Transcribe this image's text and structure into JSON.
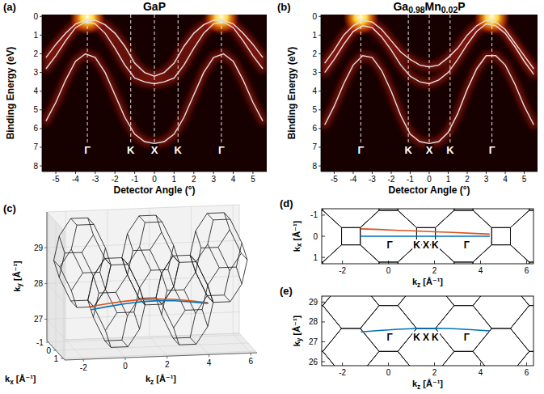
{
  "chart_data": [
    {
      "type": "line",
      "panel": "(a)",
      "title": "GaP",
      "x_label": "Detector Angle (°)",
      "y_label": "Binding Energy (eV)",
      "x": [
        -5.5,
        -5,
        -4.5,
        -4,
        -3.5,
        -3,
        -2.5,
        -2,
        -1.5,
        -1,
        -0.5,
        0,
        0.5,
        1,
        1.5,
        2,
        2.5,
        3,
        3.5,
        4,
        4.5,
        5,
        5.5
      ],
      "series": [
        {
          "color": "#e0e0e0",
          "values": [
            2.2,
            1.5,
            0.9,
            0.4,
            0.2,
            0.2,
            0.45,
            0.9,
            1.6,
            2.5,
            3.0,
            3.2,
            3.0,
            2.5,
            1.6,
            0.9,
            0.45,
            0.2,
            0.2,
            0.4,
            0.9,
            1.5,
            2.2
          ]
        },
        {
          "color": "#e0e0e0",
          "values": [
            2.8,
            2.1,
            1.3,
            0.6,
            0.3,
            0.4,
            0.9,
            1.7,
            2.6,
            3.3,
            3.5,
            3.6,
            3.5,
            3.3,
            2.6,
            1.7,
            0.9,
            0.4,
            0.3,
            0.6,
            1.3,
            2.1,
            2.8
          ]
        },
        {
          "color": "#e0e0e0",
          "values": [
            5.6,
            4.6,
            3.4,
            2.4,
            2.0,
            2.2,
            3.0,
            4.2,
            5.4,
            6.3,
            6.7,
            6.8,
            6.7,
            6.3,
            5.4,
            4.2,
            3.0,
            2.2,
            2.0,
            2.4,
            3.4,
            4.6,
            5.6
          ]
        }
      ],
      "xlim": [
        -5.7,
        5.7
      ],
      "ylim": [
        8.3,
        -0.1
      ],
      "xticks": [
        -5,
        -4,
        -3,
        -2,
        -1,
        0,
        1,
        2,
        3,
        4,
        5
      ],
      "yticks": [
        0,
        1,
        2,
        3,
        4,
        5,
        6,
        7,
        8
      ],
      "annotations": [
        {
          "text": "Γ",
          "x": -3.4,
          "y": 7.2
        },
        {
          "text": "K",
          "x": -1.2,
          "y": 7.2
        },
        {
          "text": "X",
          "x": 0,
          "y": 7.2
        },
        {
          "text": "K",
          "x": 1.2,
          "y": 7.2
        },
        {
          "text": "Γ",
          "x": 3.4,
          "y": 7.2
        }
      ]
    },
    {
      "type": "line",
      "panel": "(b)",
      "title": "Ga0.98Mn0.02P",
      "x_label": "Detector Angle (°)",
      "y_label": "Binding Energy (eV)",
      "x": [
        -5.5,
        -5,
        -4.5,
        -4,
        -3.5,
        -3,
        -2.5,
        -2,
        -1.5,
        -1,
        -0.5,
        0,
        0.5,
        1,
        1.5,
        2,
        2.5,
        3,
        3.5,
        4,
        4.5,
        5,
        5.5
      ],
      "series": [
        {
          "color": "#e0e0e0",
          "values": [
            2.5,
            1.8,
            1.0,
            0.5,
            0.2,
            0.3,
            0.7,
            1.3,
            1.9,
            2.3,
            2.6,
            2.7,
            2.6,
            2.2,
            1.7,
            1.0,
            0.5,
            0.2,
            0.3,
            0.7,
            1.4,
            2.1,
            2.8
          ]
        },
        {
          "color": "#e0e0e0",
          "values": [
            3.0,
            2.3,
            1.5,
            0.8,
            0.5,
            0.6,
            1.1,
            1.8,
            2.6,
            3.2,
            3.5,
            3.6,
            3.4,
            3.0,
            2.3,
            1.5,
            0.8,
            0.4,
            0.5,
            0.9,
            1.6,
            2.4,
            3.1
          ]
        },
        {
          "color": "#e0e0e0",
          "values": [
            5.8,
            4.8,
            3.6,
            2.6,
            2.1,
            2.2,
            2.9,
            4.0,
            5.3,
            6.3,
            6.7,
            6.8,
            6.7,
            6.2,
            5.2,
            3.9,
            2.8,
            2.1,
            2.1,
            2.6,
            3.6,
            4.8,
            5.8
          ]
        }
      ],
      "xlim": [
        -5.7,
        5.7
      ],
      "ylim": [
        8.3,
        -0.1
      ],
      "xticks": [
        -5,
        -4,
        -3,
        -2,
        -1,
        0,
        1,
        2,
        3,
        4,
        5
      ],
      "yticks": [
        0,
        1,
        2,
        3,
        4,
        5,
        6,
        7,
        8
      ],
      "annotations": [
        {
          "text": "Γ",
          "x": -3.6,
          "y": 7.2
        },
        {
          "text": "K",
          "x": -1.1,
          "y": 7.2
        },
        {
          "text": "X",
          "x": 0,
          "y": 7.2
        },
        {
          "text": "K",
          "x": 1.1,
          "y": 7.2
        },
        {
          "text": "Γ",
          "x": 3.3,
          "y": 7.2
        }
      ]
    },
    {
      "type": "line3d",
      "panel": "(c)",
      "x_label": "kz [Å⁻¹]",
      "y_label": "ky [Å⁻¹]",
      "z_label": "kx [Å⁻¹]",
      "x": [
        -1.2,
        -0.4,
        0.4,
        1.2,
        2.0,
        2.8,
        3.6,
        4.4
      ],
      "series": [
        {
          "color": "#0072bd",
          "values": [
            27.5,
            27.57,
            27.63,
            27.67,
            27.68,
            27.66,
            27.61,
            27.55
          ],
          "z": [
            0,
            0,
            0,
            0,
            0,
            0,
            0,
            0
          ]
        },
        {
          "color": "#d95319",
          "values": [
            27.5,
            27.57,
            27.63,
            27.67,
            27.68,
            27.66,
            27.61,
            27.55
          ],
          "z": [
            -0.35,
            -0.32,
            -0.28,
            -0.25,
            -0.21,
            -0.18,
            -0.14,
            -0.1
          ]
        }
      ],
      "xlim": [
        -2.9,
        6.3
      ],
      "ylim": [
        26.4,
        30
      ],
      "zlim": [
        -1.2,
        1.2
      ],
      "xticks": [
        -2,
        0,
        2,
        4,
        6
      ],
      "yticks": [
        27,
        28,
        29
      ],
      "zticks": [
        -1,
        0,
        1
      ],
      "grid": true,
      "zone_lattice": 1.153
    },
    {
      "type": "line",
      "panel": "(d)",
      "x_label": "kz [Å⁻¹]",
      "y_label": "kx [Å⁻¹]",
      "x": [
        -1.2,
        -0.4,
        0.4,
        1.2,
        2.0,
        2.8,
        3.6,
        4.4
      ],
      "series": [
        {
          "color": "#0072bd",
          "values": [
            0,
            0,
            0,
            0,
            0,
            0,
            0,
            0
          ]
        },
        {
          "color": "#d95319",
          "values": [
            -0.35,
            -0.32,
            -0.28,
            -0.25,
            -0.21,
            -0.18,
            -0.14,
            -0.1
          ]
        }
      ],
      "xlim": [
        -2.9,
        6.3
      ],
      "ylim": [
        1.3,
        -1.3
      ],
      "xticks": [
        -2,
        0,
        2,
        4,
        6
      ],
      "yticks": [
        -1,
        0,
        1
      ],
      "annotations": [
        {
          "text": "Γ",
          "x": 0.05,
          "y": 0.45
        },
        {
          "text": "K",
          "x": 1.23,
          "y": 0.45
        },
        {
          "text": "X",
          "x": 1.63,
          "y": 0.45
        },
        {
          "text": "K",
          "x": 2.03,
          "y": 0.45
        },
        {
          "text": "Γ",
          "x": 3.4,
          "y": 0.45
        }
      ],
      "zone_lattice": 1.153
    },
    {
      "type": "line",
      "panel": "(e)",
      "x_label": "kz [Å⁻¹]",
      "y_label": "ky [Å⁻¹]",
      "x": [
        -1.2,
        -0.4,
        0.4,
        1.2,
        2.0,
        2.8,
        3.6,
        4.4
      ],
      "series": [
        {
          "color": "#0072bd",
          "values": [
            27.5,
            27.57,
            27.63,
            27.67,
            27.68,
            27.66,
            27.61,
            27.55
          ]
        }
      ],
      "xlim": [
        -2.9,
        6.3
      ],
      "ylim": [
        25.8,
        29.3
      ],
      "xticks": [
        -2,
        0,
        2,
        4,
        6
      ],
      "yticks": [
        26,
        27,
        28,
        29
      ],
      "annotations": [
        {
          "text": "Γ",
          "x": 0.05,
          "y": 27.2
        },
        {
          "text": "K",
          "x": 1.23,
          "y": 27.2
        },
        {
          "text": "X",
          "x": 1.63,
          "y": 27.2
        },
        {
          "text": "K",
          "x": 2.03,
          "y": 27.2
        },
        {
          "text": "Γ",
          "x": 3.4,
          "y": 27.2
        }
      ],
      "zone_lattice": 1.153
    }
  ]
}
